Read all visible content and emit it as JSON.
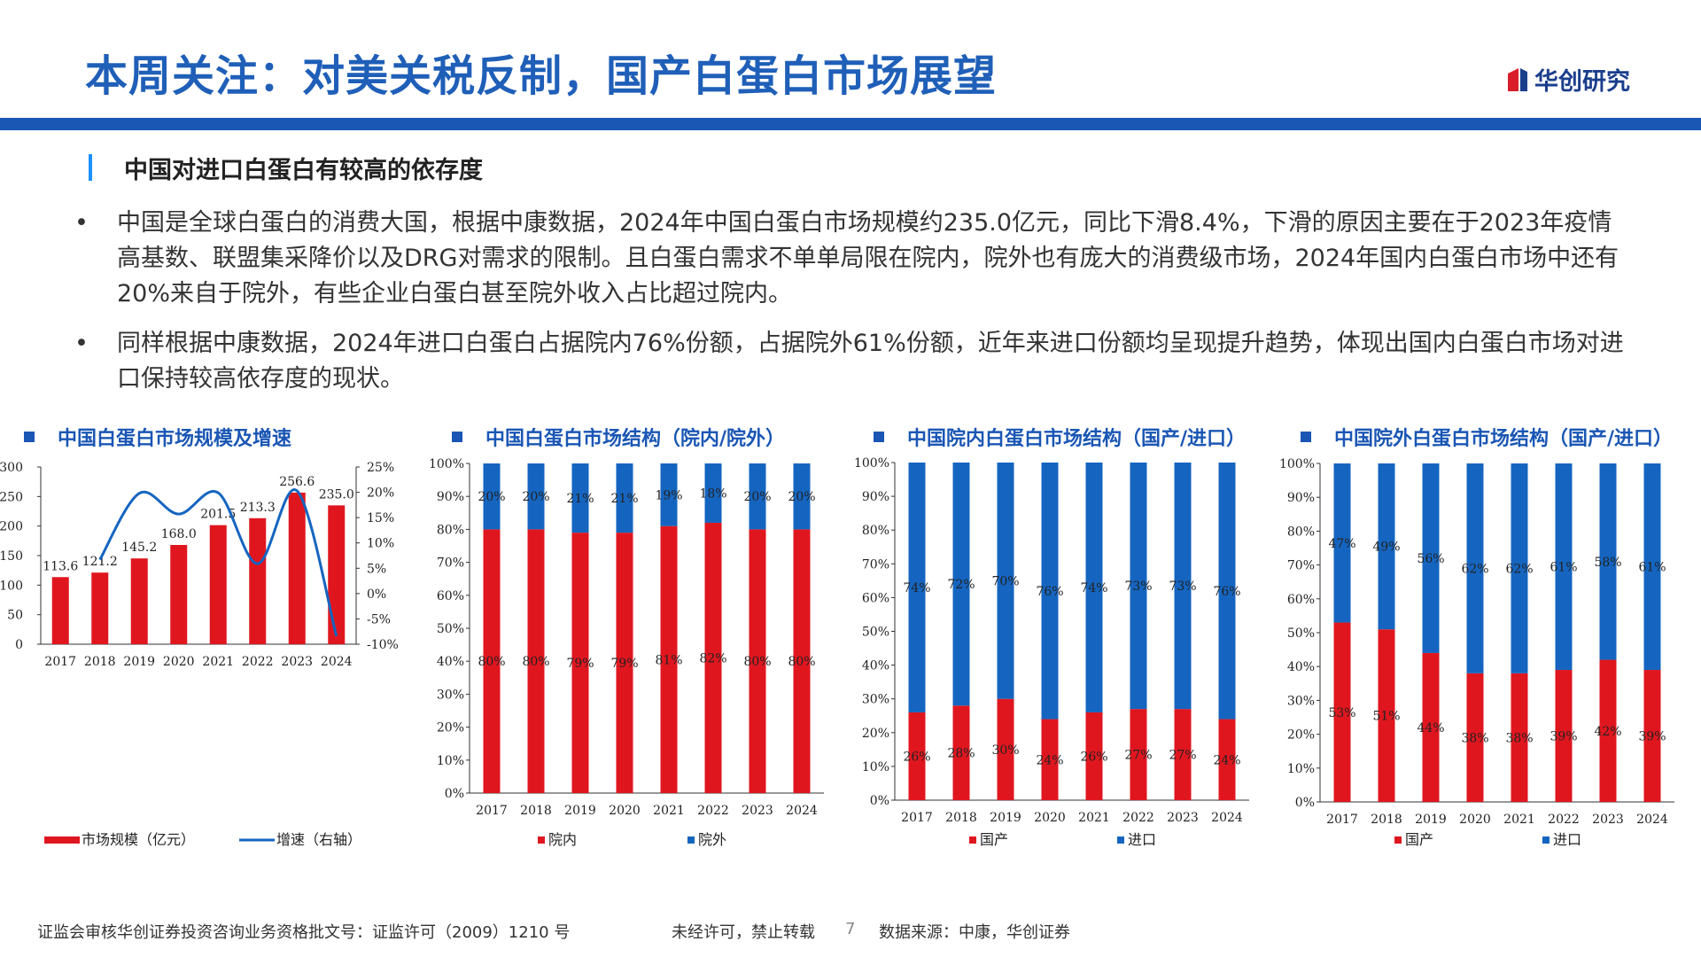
{
  "header": {
    "title": "本周关注：对美关税反制，国产白蛋白市场展望",
    "logo_text": "华创研究"
  },
  "section": {
    "title": "中国对进口白蛋白有较高的依存度"
  },
  "bullets": [
    {
      "marker": "•",
      "text": "中国是全球白蛋白的消费大国，根据中康数据，2024年中国白蛋白市场规模约235.0亿元，同比下滑8.4%，下滑的原因主要在于2023年疫情高基数、联盟集采降价以及DRG对需求的限制。且白蛋白需求不单单局限在院内，院外也有庞大的消费级市场，2024年国内白蛋白市场中还有20%来自于院外，有些企业白蛋白甚至院外收入占比超过院内。"
    },
    {
      "marker": "•",
      "text": "同样根据中康数据，2024年进口白蛋白占据院内76%份额，占据院外61%份额，近年来进口份额均呈现提升趋势，体现出国内白蛋白市场对进口保持较高依存度的现状。"
    }
  ],
  "colors": {
    "red": "#e0161f",
    "blue": "#1565c0",
    "accent": "#1a56b4"
  },
  "chart_data": [
    {
      "type": "bar+line",
      "title": "中国白蛋白市场规模及增速",
      "categories": [
        "2017",
        "2018",
        "2019",
        "2020",
        "2021",
        "2022",
        "2023",
        "2024"
      ],
      "bar": {
        "name": "市场规模（亿元）",
        "values": [
          113.6,
          121.2,
          145.2,
          168.0,
          201.5,
          213.3,
          256.6,
          235.0
        ],
        "labels": [
          "113.6",
          "121.2",
          "145.2",
          "168.0",
          "201.5",
          "213.3",
          "256.6",
          "235.0"
        ]
      },
      "line": {
        "name": "增速（右轴）",
        "values": [
          null,
          6.7,
          19.8,
          15.7,
          19.9,
          5.9,
          20.3,
          -8.4
        ]
      },
      "ylim": [
        0,
        300
      ],
      "yticks": [
        "0",
        "50",
        "100",
        "150",
        "200",
        "250",
        "300"
      ],
      "y2lim": [
        -10,
        25
      ],
      "y2ticks": [
        "-10%",
        "-5%",
        "0%",
        "5%",
        "10%",
        "15%",
        "20%",
        "25%"
      ]
    },
    {
      "type": "stacked-bar",
      "title": "中国白蛋白市场结构（院内/院外）",
      "categories": [
        "2017",
        "2018",
        "2019",
        "2020",
        "2021",
        "2022",
        "2023",
        "2024"
      ],
      "series": [
        {
          "name": "院内",
          "values": [
            80,
            80,
            79,
            79,
            81,
            82,
            80,
            80
          ],
          "labels": [
            "80%",
            "80%",
            "79%",
            "79%",
            "81%",
            "82%",
            "80%",
            "80%"
          ]
        },
        {
          "name": "院外",
          "values": [
            20,
            20,
            21,
            21,
            19,
            18,
            20,
            20
          ],
          "labels": [
            "20%",
            "20%",
            "21%",
            "21%",
            "19%",
            "18%",
            "20%",
            "20%"
          ]
        }
      ],
      "ylim": [
        0,
        100
      ],
      "yticks": [
        "0%",
        "10%",
        "20%",
        "30%",
        "40%",
        "50%",
        "60%",
        "70%",
        "80%",
        "90%",
        "100%"
      ]
    },
    {
      "type": "stacked-bar",
      "title": "中国院内白蛋白市场结构（国产/进口）",
      "categories": [
        "2017",
        "2018",
        "2019",
        "2020",
        "2021",
        "2022",
        "2023",
        "2024"
      ],
      "series": [
        {
          "name": "国产",
          "values": [
            26,
            28,
            30,
            24,
            26,
            27,
            27,
            24
          ],
          "labels": [
            "26%",
            "28%",
            "30%",
            "24%",
            "26%",
            "27%",
            "27%",
            "24%"
          ]
        },
        {
          "name": "进口",
          "values": [
            74,
            72,
            70,
            76,
            74,
            73,
            73,
            76
          ],
          "labels": [
            "74%",
            "72%",
            "70%",
            "76%",
            "74%",
            "73%",
            "73%",
            "76%"
          ]
        }
      ],
      "ylim": [
        0,
        100
      ],
      "yticks": [
        "0%",
        "10%",
        "20%",
        "30%",
        "40%",
        "50%",
        "60%",
        "70%",
        "80%",
        "90%",
        "100%"
      ]
    },
    {
      "type": "stacked-bar",
      "title": "中国院外白蛋白市场结构（国产/进口）",
      "categories": [
        "2017",
        "2018",
        "2019",
        "2020",
        "2021",
        "2022",
        "2023",
        "2024"
      ],
      "series": [
        {
          "name": "国产",
          "values": [
            53,
            51,
            44,
            38,
            38,
            39,
            42,
            39
          ],
          "labels": [
            "53%",
            "51%",
            "44%",
            "38%",
            "38%",
            "39%",
            "42%",
            "39%"
          ]
        },
        {
          "name": "进口",
          "values": [
            47,
            49,
            56,
            62,
            62,
            61,
            58,
            61
          ],
          "labels": [
            "47%",
            "49%",
            "56%",
            "62%",
            "62%",
            "61%",
            "58%",
            "61%"
          ]
        }
      ],
      "ylim": [
        0,
        100
      ],
      "yticks": [
        "0%",
        "10%",
        "20%",
        "30%",
        "40%",
        "50%",
        "60%",
        "70%",
        "80%",
        "90%",
        "100%"
      ]
    }
  ],
  "footer": {
    "license": "证监会审核华创证券投资咨询业务资格批文号：证监许可（2009）1210 号",
    "notice": "未经许可，禁止转载",
    "page": "7",
    "source": "数据来源：中康，华创证券"
  }
}
